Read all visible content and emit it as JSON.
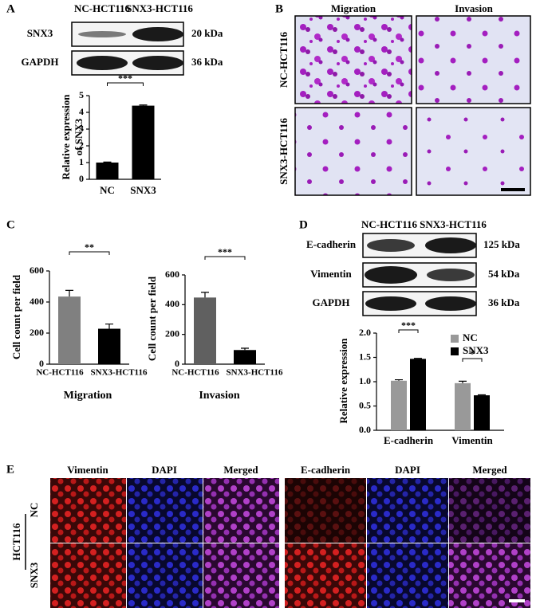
{
  "panel_labels": [
    "A",
    "B",
    "C",
    "D",
    "E"
  ],
  "blot_a": {
    "columns": [
      "NC-HCT116",
      "SNX3-HCT116"
    ],
    "rows": [
      {
        "protein": "SNX3",
        "size": "20 kDa"
      },
      {
        "protein": "GAPDH",
        "size": "36 kDa"
      }
    ]
  },
  "micrographs_b": {
    "columns": [
      "Migration",
      "Invasion"
    ],
    "rows": [
      "NC-HCT116",
      "SNX3-HCT116"
    ]
  },
  "blot_d": {
    "columns": [
      "NC-HCT116",
      "SNX3-HCT116"
    ],
    "rows": [
      {
        "protein": "E-cadherin",
        "size": "125 kDa"
      },
      {
        "protein": "Vimentin",
        "size": "54 kDa"
      },
      {
        "protein": "GAPDH",
        "size": "36 kDa"
      }
    ]
  },
  "fluorescence_e": {
    "columns": [
      "Vimentin",
      "DAPI",
      "Merged",
      "E-cadherin",
      "DAPI",
      "Merged"
    ],
    "rows": [
      "NC",
      "SNX3"
    ],
    "group": "HCT116"
  },
  "chart_data": [
    {
      "type": "bar",
      "ylabel": [
        "Relative expression",
        "of SNX3"
      ],
      "categories": [
        "NC",
        "SNX3"
      ],
      "values": [
        1.0,
        4.4
      ],
      "errors": [
        0.03,
        0.04
      ],
      "colors": [
        "#000000",
        "#000000"
      ],
      "ylim": [
        0,
        5
      ],
      "yticks": [
        0,
        1,
        2,
        3,
        4,
        5
      ],
      "significance": "***"
    },
    {
      "type": "bar",
      "title": "Migration",
      "ylabel": [
        "Cell count per field"
      ],
      "categories": [
        "NC-HCT116",
        "SNX3-HCT116"
      ],
      "values": [
        435,
        228
      ],
      "errors": [
        40,
        30
      ],
      "colors": [
        "#808080",
        "#000000"
      ],
      "ylim": [
        0,
        600
      ],
      "yticks": [
        0,
        200,
        400,
        600
      ],
      "significance": "**"
    },
    {
      "type": "bar",
      "title": "Invasion",
      "ylabel": [
        "Cell count per field"
      ],
      "categories": [
        "NC-HCT116",
        "SNX3-HCT116"
      ],
      "values": [
        448,
        95
      ],
      "errors": [
        35,
        12
      ],
      "colors": [
        "#606060",
        "#000000"
      ],
      "ylim": [
        0,
        600
      ],
      "yticks": [
        0,
        200,
        400,
        600
      ],
      "significance": "***"
    },
    {
      "type": "grouped_bar",
      "ylabel": [
        "Relative expression"
      ],
      "categories": [
        "E-cadherin",
        "Vimentin"
      ],
      "series": [
        {
          "name": "NC",
          "color": "#999999",
          "values": [
            1.02,
            0.97
          ],
          "errors": [
            0.02,
            0.04
          ]
        },
        {
          "name": "SNX3",
          "color": "#000000",
          "values": [
            1.47,
            0.72
          ],
          "errors": [
            0.01,
            0.01
          ]
        }
      ],
      "ylim": [
        0,
        2
      ],
      "yticks": [
        {
          "value": 0,
          "label": "0.0"
        },
        0.5,
        {
          "value": 1,
          "label": "1.0"
        },
        1.5,
        {
          "value": 2,
          "label": "2.0"
        }
      ],
      "significance": [
        "***",
        "*"
      ]
    }
  ]
}
